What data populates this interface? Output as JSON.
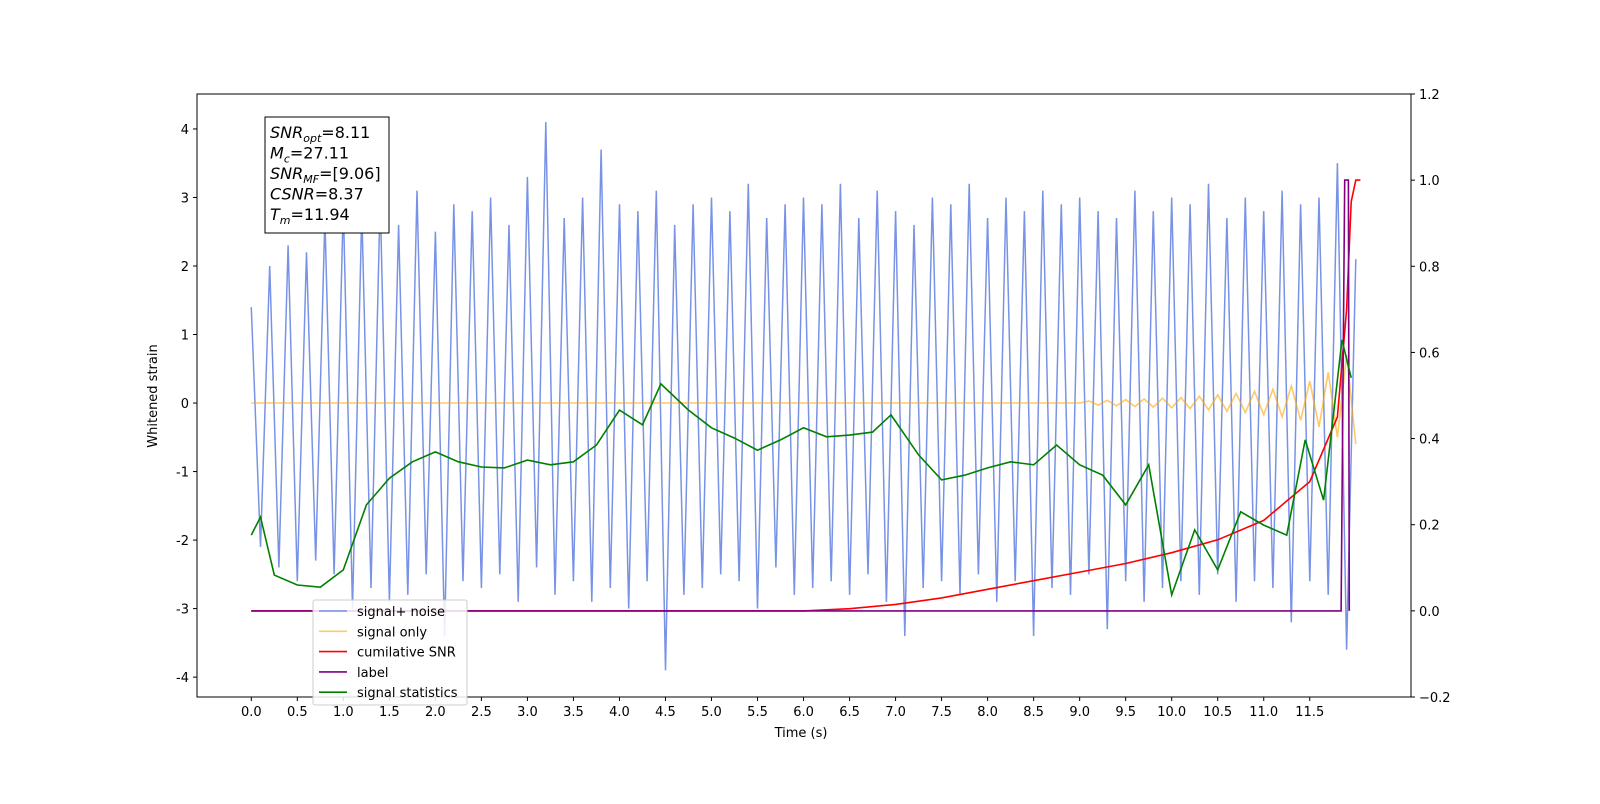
{
  "chart_data": {
    "type": "line",
    "xlabel": "Time (s)",
    "ylabel": "Whitened strain",
    "xlim": [
      -0.59,
      12.6
    ],
    "ylim": [
      -4.29,
      4.51
    ],
    "y2lim": [
      -0.2,
      1.2
    ],
    "xticks": [
      {
        "value": 0,
        "label": "0.0"
      },
      0.5,
      {
        "value": 1,
        "label": "1.0"
      },
      1.5,
      {
        "value": 2,
        "label": "2.0"
      },
      2.5,
      {
        "value": 3,
        "label": "3.0"
      },
      3.5,
      {
        "value": 4,
        "label": "4.0"
      },
      4.5,
      {
        "value": 5,
        "label": "5.0"
      },
      5.5,
      {
        "value": 6,
        "label": "6.0"
      },
      6.5,
      {
        "value": 7,
        "label": "7.0"
      },
      7.5,
      {
        "value": 8,
        "label": "8.0"
      },
      8.5,
      {
        "value": 9,
        "label": "9.0"
      },
      9.5,
      {
        "value": 10,
        "label": "10.0"
      },
      10.5,
      {
        "value": 11,
        "label": "11.0"
      },
      11.5
    ],
    "yticks": [
      -4,
      -3,
      -2,
      -1,
      0,
      1,
      2,
      3,
      4
    ],
    "y2ticks": [
      {
        "value": -0.2,
        "label": "−0.2"
      },
      {
        "value": 0,
        "label": "0.0"
      },
      0.2,
      0.4,
      0.6,
      0.8,
      {
        "value": 1,
        "label": "1.0"
      },
      1.2
    ],
    "legend": "lower left",
    "annotations": [
      {
        "symbol": "SNR",
        "subscript": "opt",
        "text": "=8.11"
      },
      {
        "symbol": "M",
        "subscript": "c",
        "text": "=27.11"
      },
      {
        "symbol": "SNR",
        "subscript": "MF",
        "text": "=[9.06]"
      },
      {
        "symbol": "CSNR",
        "subscript": "",
        "text": "=8.37"
      },
      {
        "symbol": "T",
        "subscript": "m",
        "text": "=11.94"
      }
    ],
    "series": [
      {
        "name": "signal+ noise",
        "color": "#7893e6",
        "axis": "y",
        "x": [
          0.0,
          0.1,
          0.2,
          0.3,
          0.4,
          0.5,
          0.6,
          0.7,
          0.8,
          0.9,
          1.0,
          1.1,
          1.2,
          1.3,
          1.4,
          1.5,
          1.6,
          1.7,
          1.8,
          1.9,
          2.0,
          2.1,
          2.2,
          2.3,
          2.4,
          2.5,
          2.6,
          2.7,
          2.8,
          2.9,
          3.0,
          3.1,
          3.2,
          3.3,
          3.4,
          3.5,
          3.6,
          3.7,
          3.8,
          3.9,
          4.0,
          4.1,
          4.2,
          4.3,
          4.4,
          4.5,
          4.6,
          4.7,
          4.8,
          4.9,
          5.0,
          5.1,
          5.2,
          5.3,
          5.4,
          5.5,
          5.6,
          5.7,
          5.8,
          5.9,
          6.0,
          6.1,
          6.2,
          6.3,
          6.4,
          6.5,
          6.6,
          6.7,
          6.8,
          6.9,
          7.0,
          7.1,
          7.2,
          7.3,
          7.4,
          7.5,
          7.6,
          7.7,
          7.8,
          7.9,
          8.0,
          8.1,
          8.2,
          8.3,
          8.4,
          8.5,
          8.6,
          8.7,
          8.8,
          8.9,
          9.0,
          9.1,
          9.2,
          9.3,
          9.4,
          9.5,
          9.6,
          9.7,
          9.8,
          9.9,
          10.0,
          10.1,
          10.2,
          10.3,
          10.4,
          10.5,
          10.6,
          10.7,
          10.8,
          10.9,
          11.0,
          11.1,
          11.2,
          11.3,
          11.4,
          11.5,
          11.6,
          11.7,
          11.8,
          11.9,
          12.0
        ],
        "values": [
          1.4,
          -2.1,
          2.0,
          -2.4,
          2.3,
          -2.6,
          2.2,
          -2.3,
          2.7,
          -2.5,
          2.9,
          -3.0,
          2.8,
          -2.7,
          3.0,
          -2.9,
          2.6,
          -2.8,
          3.1,
          -2.5,
          2.5,
          -3.4,
          2.9,
          -2.6,
          2.8,
          -2.7,
          3.0,
          -2.5,
          2.6,
          -2.9,
          3.3,
          -2.4,
          4.1,
          -2.8,
          2.7,
          -2.6,
          3.0,
          -2.9,
          3.7,
          -2.7,
          2.9,
          -3.0,
          2.8,
          -2.6,
          3.1,
          -3.9,
          2.6,
          -2.8,
          2.9,
          -2.7,
          3.0,
          -2.5,
          2.8,
          -2.6,
          3.2,
          -3.0,
          2.7,
          -2.4,
          2.9,
          -2.8,
          3.0,
          -2.7,
          2.9,
          -2.6,
          3.2,
          -2.8,
          2.7,
          -2.5,
          3.1,
          -2.9,
          2.8,
          -3.4,
          2.6,
          -2.7,
          3.0,
          -2.6,
          2.9,
          -2.8,
          3.2,
          -2.5,
          2.7,
          -2.9,
          3.0,
          -2.6,
          2.8,
          -3.4,
          3.1,
          -2.7,
          2.9,
          -2.8,
          3.0,
          -2.5,
          2.8,
          -3.3,
          2.7,
          -2.6,
          3.1,
          -2.9,
          2.8,
          -2.7,
          3.0,
          -2.6,
          2.9,
          -2.8,
          3.2,
          -2.5,
          2.7,
          -2.9,
          3.0,
          -2.6,
          2.8,
          -2.7,
          3.1,
          -3.2,
          2.9,
          -2.6,
          3.0,
          -2.8,
          3.5,
          -3.6,
          2.1
        ]
      },
      {
        "name": "signal only",
        "color": "#ffa500",
        "axis": "y",
        "x": [
          0.0,
          9.0,
          9.1,
          9.2,
          9.3,
          9.4,
          9.5,
          9.6,
          9.7,
          9.8,
          9.9,
          10.0,
          10.1,
          10.2,
          10.3,
          10.4,
          10.5,
          10.6,
          10.7,
          10.8,
          10.9,
          11.0,
          11.1,
          11.2,
          11.3,
          11.4,
          11.5,
          11.6,
          11.7,
          11.8,
          11.9,
          12.0
        ],
        "values": [
          0,
          0,
          0.03,
          -0.03,
          0.04,
          -0.04,
          0.05,
          -0.05,
          0.06,
          -0.06,
          0.07,
          -0.07,
          0.08,
          -0.08,
          0.1,
          -0.1,
          0.12,
          -0.12,
          0.14,
          -0.14,
          0.17,
          -0.17,
          0.2,
          -0.2,
          0.25,
          -0.25,
          0.32,
          -0.35,
          0.45,
          -0.5,
          0.7,
          -0.6
        ]
      },
      {
        "name": "cumilative SNR",
        "color": "#ff0000",
        "axis": "y2",
        "x": [
          0,
          6.0,
          6.5,
          7.0,
          7.5,
          8.0,
          8.5,
          9.0,
          9.5,
          10.0,
          10.5,
          11.0,
          11.5,
          11.8,
          11.9,
          11.95,
          12.0,
          12.05
        ],
        "values": [
          0,
          0,
          0.005,
          0.015,
          0.03,
          0.05,
          0.07,
          0.09,
          0.11,
          0.135,
          0.165,
          0.21,
          0.3,
          0.45,
          0.7,
          0.95,
          1.0,
          1.0
        ]
      },
      {
        "name": "label",
        "color": "#800080",
        "axis": "y2",
        "x": [
          0,
          11.84,
          11.88,
          11.92,
          11.93
        ],
        "values": [
          0,
          0,
          1.0,
          1.0,
          0
        ]
      },
      {
        "name": "signal statistics",
        "color": "#008000",
        "axis": "y2",
        "x": [
          0,
          0.1,
          0.25,
          0.5,
          0.75,
          1.0,
          1.25,
          1.5,
          1.75,
          2.0,
          2.25,
          2.5,
          2.75,
          3.0,
          3.25,
          3.5,
          3.75,
          4.0,
          4.25,
          4.45,
          4.75,
          5.0,
          5.25,
          5.5,
          5.75,
          6.0,
          6.25,
          6.5,
          6.75,
          6.95,
          7.25,
          7.5,
          7.75,
          8.0,
          8.25,
          8.5,
          8.75,
          9.0,
          9.25,
          9.5,
          9.75,
          10.0,
          10.25,
          10.5,
          10.75,
          11.0,
          11.25,
          11.45,
          11.65,
          11.85,
          11.95
        ],
        "values": [
          0.176,
          0.218,
          0.083,
          0.06,
          0.055,
          0.095,
          0.246,
          0.308,
          0.346,
          0.369,
          0.346,
          0.334,
          0.332,
          0.35,
          0.339,
          0.346,
          0.385,
          0.466,
          0.432,
          0.527,
          0.466,
          0.425,
          0.401,
          0.373,
          0.397,
          0.425,
          0.404,
          0.408,
          0.415,
          0.455,
          0.362,
          0.304,
          0.315,
          0.332,
          0.346,
          0.339,
          0.385,
          0.339,
          0.315,
          0.246,
          0.339,
          0.037,
          0.188,
          0.095,
          0.23,
          0.199,
          0.176,
          0.397,
          0.257,
          0.629,
          0.541
        ]
      }
    ]
  }
}
